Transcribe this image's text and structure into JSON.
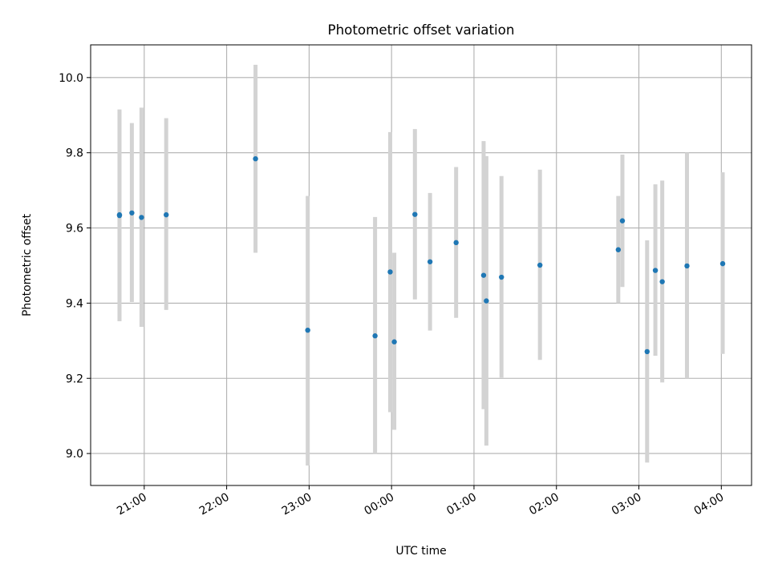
{
  "chart_data": {
    "type": "scatter",
    "title": "Photometric offset variation",
    "xlabel": "UTC time",
    "ylabel": "Photometric offset",
    "x_axis": {
      "kind": "time",
      "ticks": [
        "21:00",
        "22:00",
        "23:00",
        "00:00",
        "01:00",
        "02:00",
        "03:00",
        "04:00"
      ],
      "xlim": [
        "20:21",
        "04:22"
      ]
    },
    "y_axis": {
      "ticks": [
        "9.0",
        "9.2",
        "9.4",
        "9.6",
        "9.8",
        "10.0"
      ],
      "ylim": [
        8.915,
        10.087
      ]
    },
    "grid": true,
    "legend": "none",
    "colors": {
      "points": "#1f77b4",
      "errorbars": "#d3d3d3",
      "grid": "#b0b0b0"
    },
    "points": [
      {
        "x": "20:42",
        "y": 9.635,
        "ylo": 9.352,
        "yhi": 9.915
      },
      {
        "x": "20:42",
        "y": 9.633,
        "ylo": 9.352,
        "yhi": 9.915
      },
      {
        "x": "20:51",
        "y": 9.64,
        "ylo": 9.403,
        "yhi": 9.879
      },
      {
        "x": "20:58",
        "y": 9.628,
        "ylo": 9.337,
        "yhi": 9.92
      },
      {
        "x": "21:16",
        "y": 9.635,
        "ylo": 9.382,
        "yhi": 9.892
      },
      {
        "x": "22:21",
        "y": 9.784,
        "ylo": 9.534,
        "yhi": 10.034
      },
      {
        "x": "22:59",
        "y": 9.328,
        "ylo": 8.968,
        "yhi": 9.685
      },
      {
        "x": "23:48",
        "y": 9.313,
        "ylo": 8.998,
        "yhi": 9.629
      },
      {
        "x": "23:59",
        "y": 9.483,
        "ylo": 9.11,
        "yhi": 9.855
      },
      {
        "x": "00:02",
        "y": 9.297,
        "ylo": 9.063,
        "yhi": 9.534
      },
      {
        "x": "00:17",
        "y": 9.636,
        "ylo": 9.41,
        "yhi": 9.863
      },
      {
        "x": "00:28",
        "y": 9.51,
        "ylo": 9.327,
        "yhi": 9.693
      },
      {
        "x": "00:47",
        "y": 9.561,
        "ylo": 9.361,
        "yhi": 9.762
      },
      {
        "x": "01:07",
        "y": 9.474,
        "ylo": 9.118,
        "yhi": 9.831
      },
      {
        "x": "01:09",
        "y": 9.406,
        "ylo": 9.021,
        "yhi": 9.791
      },
      {
        "x": "01:20",
        "y": 9.469,
        "ylo": 9.202,
        "yhi": 9.738
      },
      {
        "x": "01:48",
        "y": 9.501,
        "ylo": 9.249,
        "yhi": 9.755
      },
      {
        "x": "02:45",
        "y": 9.542,
        "ylo": 9.4,
        "yhi": 9.685
      },
      {
        "x": "02:48",
        "y": 9.619,
        "ylo": 9.443,
        "yhi": 9.795
      },
      {
        "x": "03:06",
        "y": 9.271,
        "ylo": 8.976,
        "yhi": 9.567
      },
      {
        "x": "03:12",
        "y": 9.487,
        "ylo": 9.26,
        "yhi": 9.716
      },
      {
        "x": "03:17",
        "y": 9.457,
        "ylo": 9.189,
        "yhi": 9.726
      },
      {
        "x": "03:35",
        "y": 9.499,
        "ylo": 9.2,
        "yhi": 9.8
      },
      {
        "x": "04:01",
        "y": 9.505,
        "ylo": 9.265,
        "yhi": 9.748
      }
    ]
  }
}
